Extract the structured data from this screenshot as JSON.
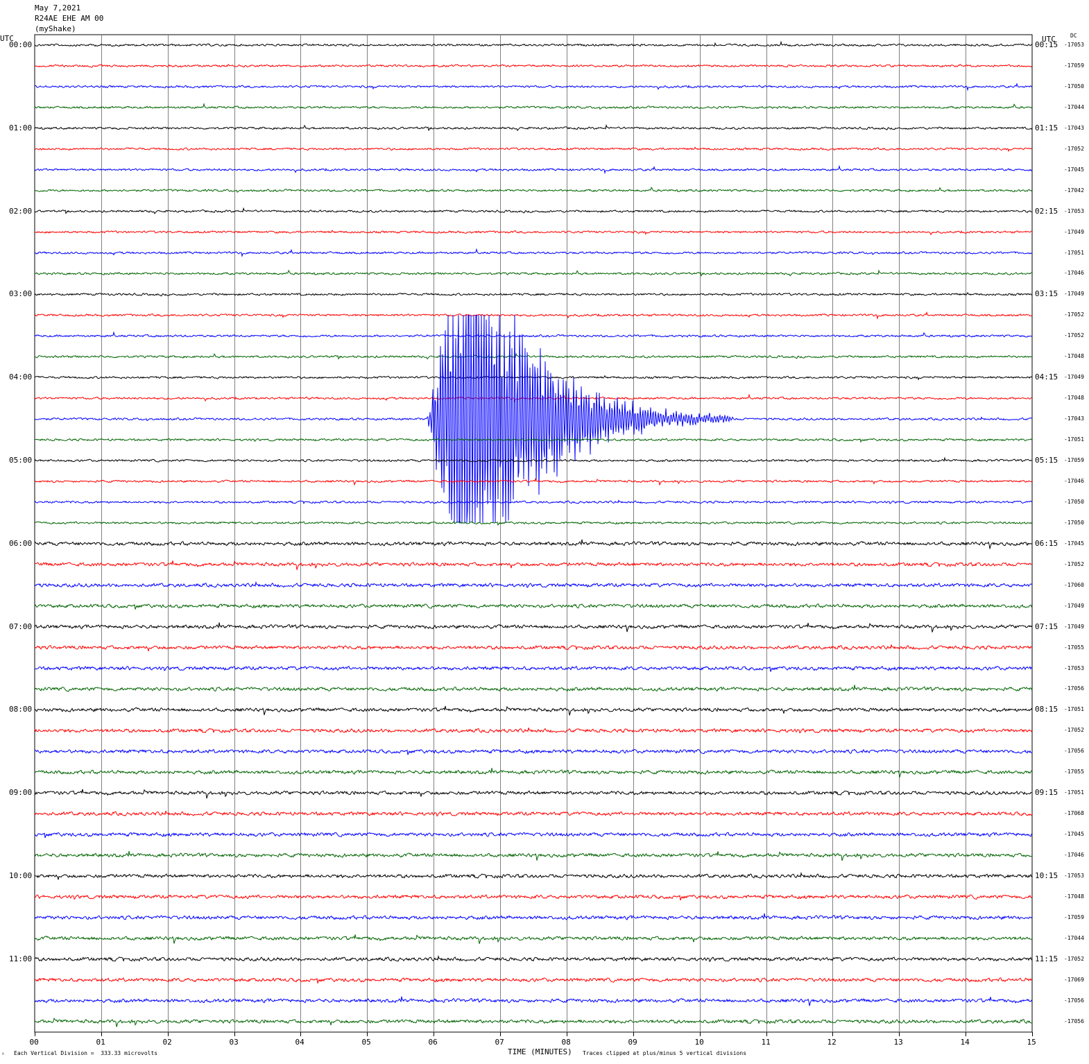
{
  "header": {
    "date": "May 7,2021",
    "station": "R24AE EHE AM 00",
    "network": "(myShake)"
  },
  "left_axis_label": "UTC",
  "right_axis_label": "UTC",
  "dc_label": "DC",
  "footer": {
    "vertical_division": "Each Vertical Division =  333.33 microvolts",
    "xlabel": "TIME (MINUTES)",
    "clip_note": "Traces clipped at plus/minus 5 vertical divisions"
  },
  "colors": [
    "#000000",
    "#ff0000",
    "#0000ff",
    "#006400"
  ],
  "chart_data": {
    "type": "line",
    "title": "May 7,2021 R24AE EHE AM 00 (myShake)",
    "xlabel": "TIME (MINUTES)",
    "xlim": [
      0,
      15
    ],
    "x_ticks": [
      "00",
      "01",
      "02",
      "03",
      "04",
      "05",
      "06",
      "07",
      "08",
      "09",
      "10",
      "11",
      "12",
      "13",
      "14",
      "15"
    ],
    "left_time_labels": [
      "00:00",
      "01:00",
      "02:00",
      "03:00",
      "04:00",
      "05:00",
      "06:00",
      "07:00",
      "08:00",
      "09:00",
      "10:00",
      "11:00"
    ],
    "right_time_labels": [
      "00:15",
      "01:15",
      "02:15",
      "03:15",
      "04:15",
      "05:15",
      "06:15",
      "07:15",
      "08:15",
      "09:15",
      "10:15",
      "11:15"
    ],
    "trace_dc_offsets": [
      "-17053",
      "-17059",
      "-17050",
      "-17044",
      "-17043",
      "-17052",
      "-17045",
      "-17042",
      "-17053",
      "-17049",
      "-17051",
      "-17046",
      "-17049",
      "-17052",
      "-17052",
      "-17048",
      "-17049",
      "-17048",
      "-17043",
      "-17051",
      "-17059",
      "-17046",
      "-17050",
      "-17050",
      "-17045",
      "-17052",
      "-17060",
      "-17049",
      "-17049",
      "-17055",
      "-17053",
      "-17056",
      "-17051",
      "-17052",
      "-17056",
      "-17055",
      "-17051",
      "-17068",
      "-17045",
      "-17046",
      "-17053",
      "-17048",
      "-17059",
      "-17044",
      "-17052",
      "-17069",
      "-17056",
      "-17056"
    ],
    "traces_per_hour": 4,
    "minutes_per_trace": 15,
    "vertical_division_microvolts": 333.33,
    "clip_divisions": 5,
    "event": {
      "trace_index": 18,
      "start_minute": 5.9,
      "peak_minute": 6.5,
      "end_minute": 10.5
    }
  }
}
